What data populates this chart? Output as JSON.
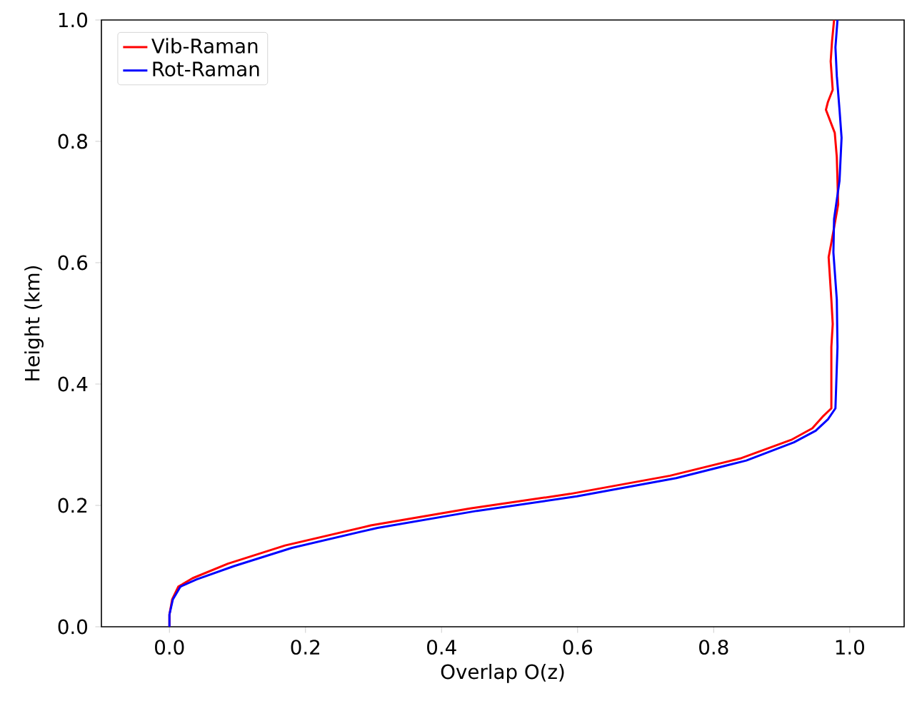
{
  "chart_data": {
    "type": "line",
    "xlabel": "Overlap O(z)",
    "ylabel": "Height (km)",
    "xlim": [
      -0.1,
      1.08
    ],
    "ylim": [
      0,
      1
    ],
    "xticks": [
      {
        "value": 0,
        "label": "0.0"
      },
      0.2,
      0.4,
      0.6,
      0.8,
      {
        "value": 1,
        "label": "1.0"
      }
    ],
    "yticks": [
      {
        "value": 0,
        "label": "0.0"
      },
      0.2,
      0.4,
      0.6,
      0.8,
      {
        "value": 1,
        "label": "1.0"
      }
    ],
    "legend": "top left",
    "grid": false,
    "marker": "none",
    "line_style": "solid",
    "series": [
      {
        "name": "Vib-Raman",
        "color": "#ff0000",
        "x": [
          0,
          0,
          0.004,
          0.013,
          0.034,
          0.086,
          0.17,
          0.296,
          0.442,
          0.589,
          0.736,
          0.841,
          0.914,
          0.945,
          0.96,
          0.973,
          0.973,
          0.975,
          0.973,
          0.969,
          0.973,
          0.983,
          0.981,
          0.978,
          0.965,
          0.968,
          0.975,
          0.972,
          0.974,
          0.977
        ],
        "values": [
          0,
          0.02,
          0.045,
          0.066,
          0.08,
          0.104,
          0.134,
          0.167,
          0.195,
          0.219,
          0.249,
          0.278,
          0.308,
          0.327,
          0.346,
          0.36,
          0.461,
          0.499,
          0.539,
          0.609,
          0.633,
          0.696,
          0.774,
          0.814,
          0.852,
          0.865,
          0.885,
          0.932,
          0.965,
          1.0
        ]
      },
      {
        "name": "Rot-Raman",
        "color": "#0000ff",
        "x": [
          0,
          0,
          0.005,
          0.016,
          0.04,
          0.095,
          0.18,
          0.306,
          0.452,
          0.599,
          0.745,
          0.848,
          0.918,
          0.95,
          0.968,
          0.979,
          0.982,
          0.981,
          0.976,
          0.977,
          0.985,
          0.988,
          0.985,
          0.981,
          0.979,
          0.982
        ],
        "values": [
          0,
          0.02,
          0.045,
          0.066,
          0.078,
          0.1,
          0.13,
          0.163,
          0.191,
          0.215,
          0.245,
          0.274,
          0.304,
          0.323,
          0.342,
          0.36,
          0.461,
          0.539,
          0.617,
          0.672,
          0.735,
          0.806,
          0.852,
          0.908,
          0.955,
          1.0
        ]
      }
    ]
  }
}
